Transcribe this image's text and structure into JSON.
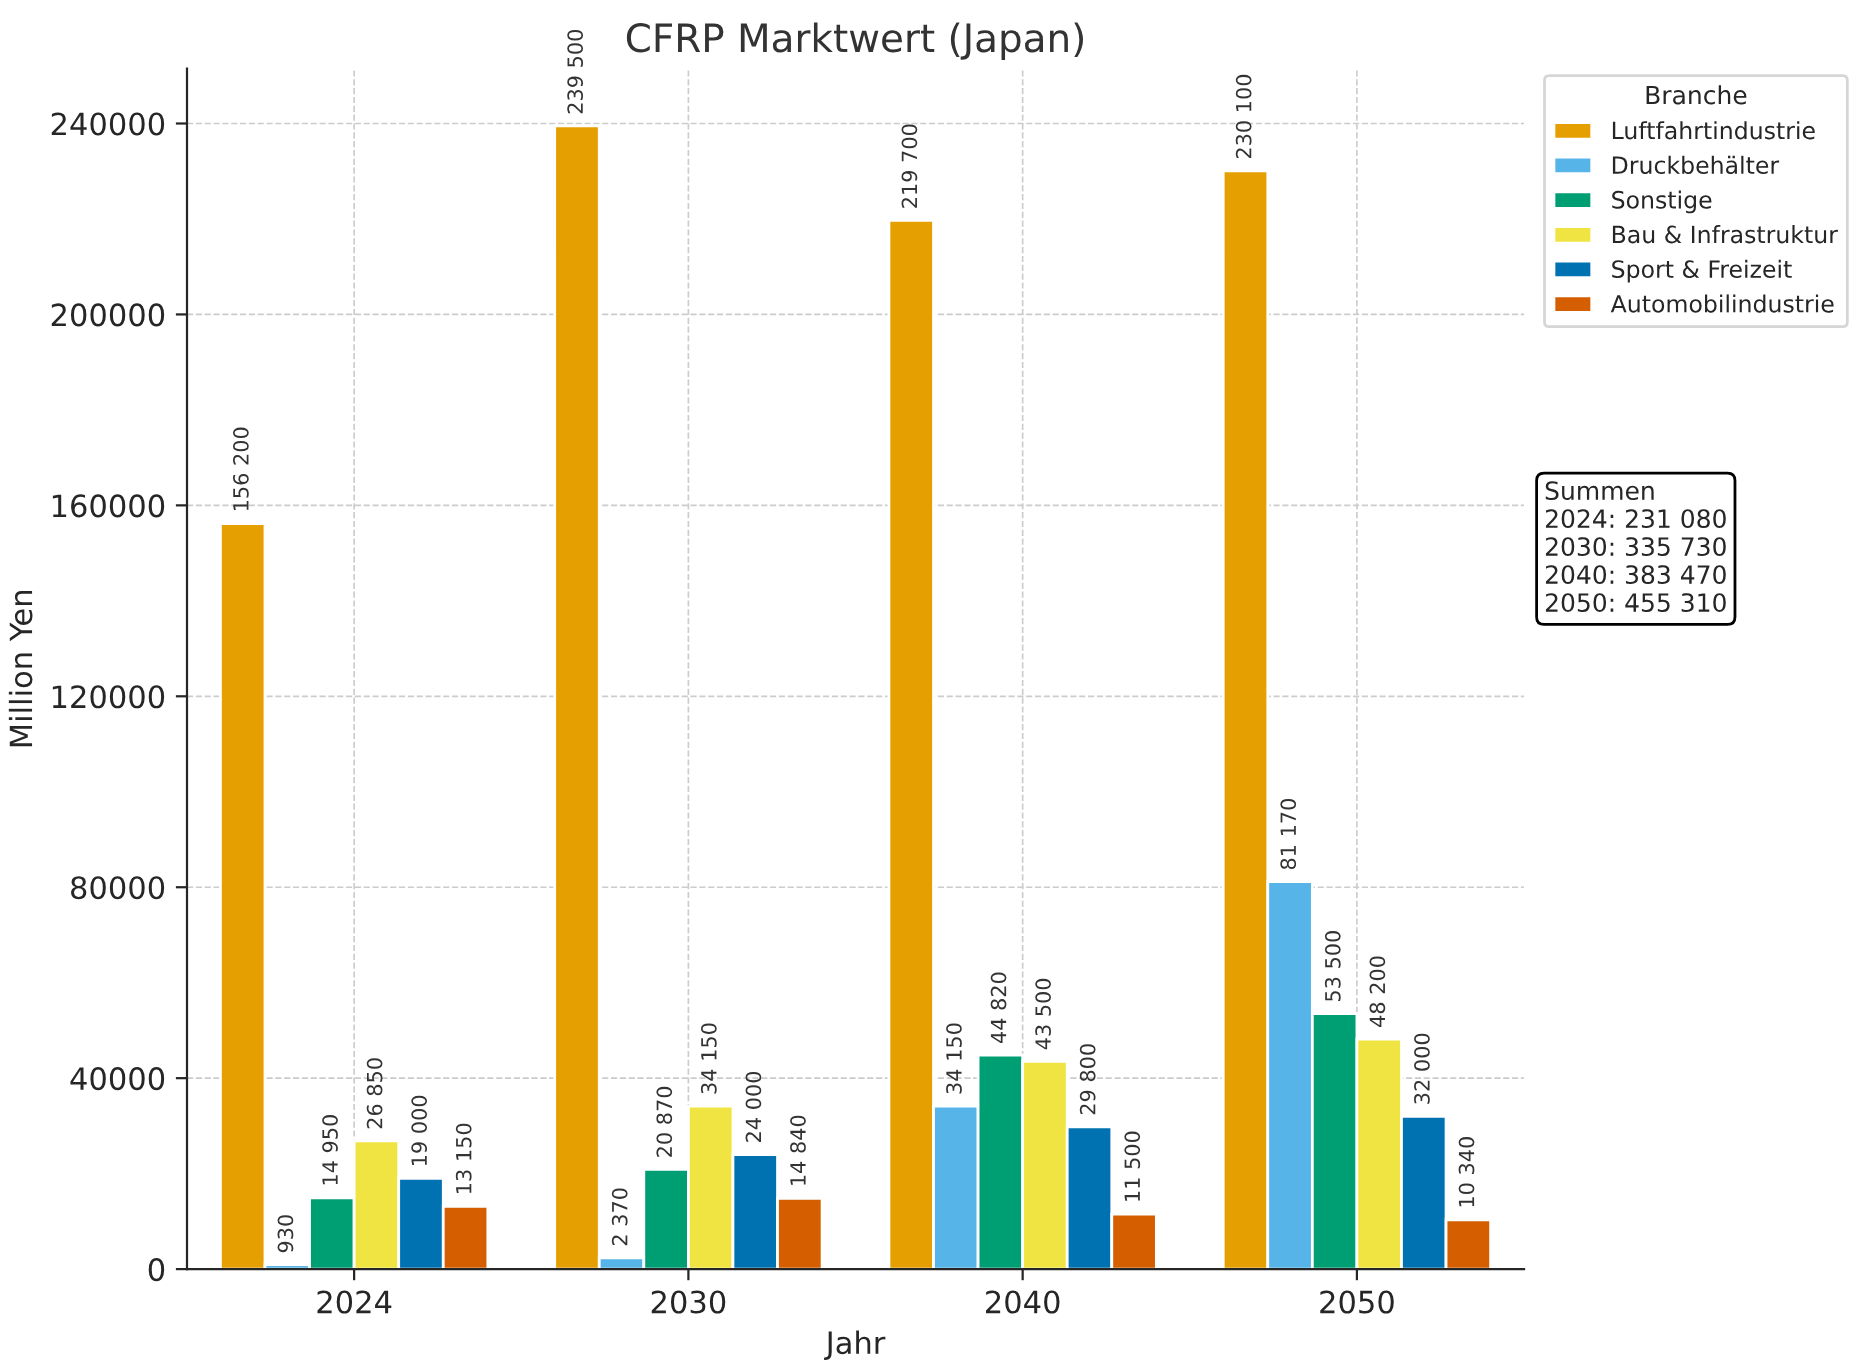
{
  "chart_data": {
    "type": "bar",
    "title": "CFRP Marktwert (Japan)",
    "xlabel": "Jahr",
    "ylabel": "Million Yen",
    "legend_title": "Branche",
    "categories": [
      "2024",
      "2030",
      "2040",
      "2050"
    ],
    "series": [
      {
        "name": "Luftfahrtindustrie",
        "color": "#e69f00",
        "values": [
          156200,
          239500,
          219700,
          230100
        ],
        "value_labels": [
          "156 200",
          "239 500",
          "219 700",
          "230 100"
        ]
      },
      {
        "name": "Druckbehälter",
        "color": "#56b4e9",
        "values": [
          930,
          2370,
          34150,
          81170
        ],
        "value_labels": [
          "930",
          "2 370",
          "34 150",
          "81 170"
        ]
      },
      {
        "name": "Sonstige",
        "color": "#009e73",
        "values": [
          14950,
          20870,
          44820,
          53500
        ],
        "value_labels": [
          "14 950",
          "20 870",
          "44 820",
          "53 500"
        ]
      },
      {
        "name": "Bau & Infrastruktur",
        "color": "#f0e442",
        "values": [
          26850,
          34150,
          43500,
          48200
        ],
        "value_labels": [
          "26 850",
          "34 150",
          "43 500",
          "48 200"
        ]
      },
      {
        "name": "Sport & Freizeit",
        "color": "#0072b2",
        "values": [
          19000,
          24000,
          29800,
          32000
        ],
        "value_labels": [
          "19 000",
          "24 000",
          "29 800",
          "32 000"
        ]
      },
      {
        "name": "Automobilindustrie",
        "color": "#d55e00",
        "values": [
          13150,
          14840,
          11500,
          10340
        ],
        "value_labels": [
          "13 150",
          "14 840",
          "11 500",
          "10 340"
        ]
      }
    ],
    "ylim": [
      0,
      251500
    ],
    "yticks": [
      0,
      40000,
      80000,
      120000,
      160000,
      200000,
      240000
    ],
    "grid": true,
    "legend": "top right",
    "annotations": [
      "Summen\n2024: 231 080\n2030: 335 730\n2040: 383 470\n2050: 455 310"
    ]
  }
}
